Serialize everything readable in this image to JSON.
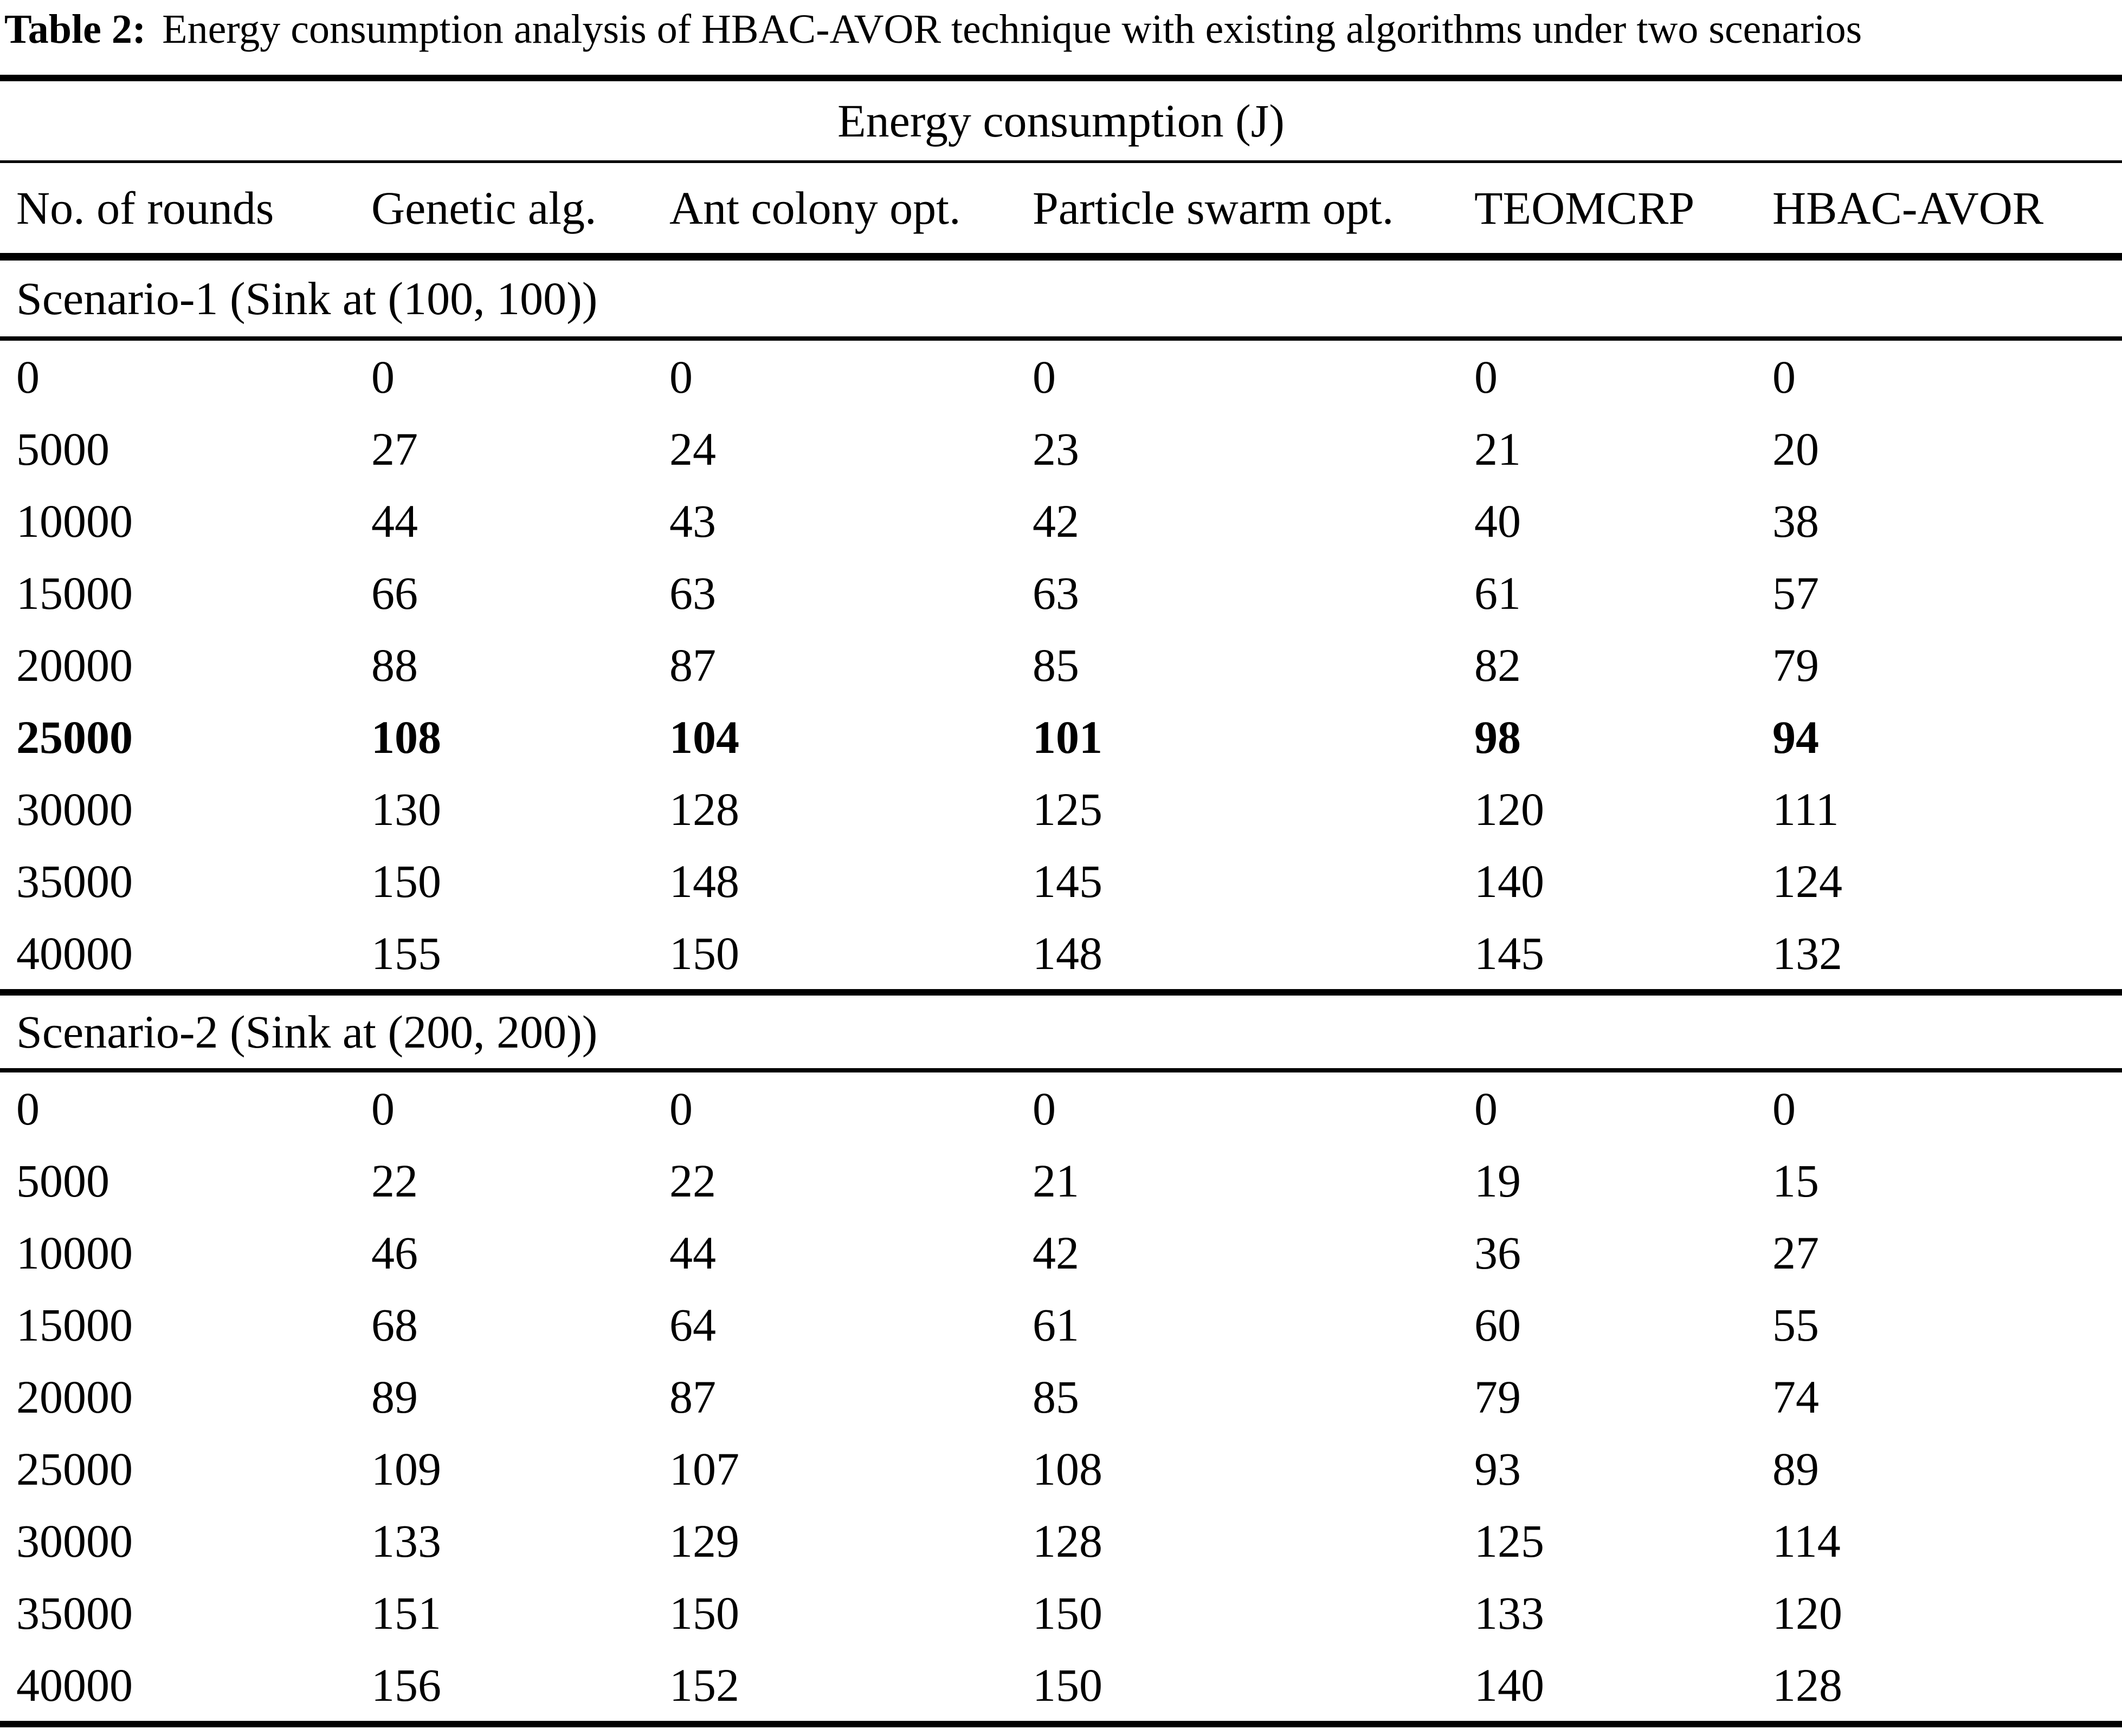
{
  "caption": {
    "label": "Table 2:",
    "text": "Energy consumption analysis of HBAC-AVOR technique with existing algorithms under two scenarios"
  },
  "table": {
    "span_header": "Energy consumption (J)",
    "columns": [
      "No. of rounds",
      "Genetic alg.",
      "Ant colony opt.",
      "Particle swarm opt.",
      "TEOMCRP",
      "HBAC-AVOR"
    ],
    "sections": [
      {
        "label": "Scenario-1 (Sink at (100, 100))",
        "rows": [
          {
            "values": [
              "0",
              "0",
              "0",
              "0",
              "0",
              "0"
            ],
            "bold": false
          },
          {
            "values": [
              "5000",
              "27",
              "24",
              "23",
              "21",
              "20"
            ],
            "bold": false
          },
          {
            "values": [
              "10000",
              "44",
              "43",
              "42",
              "40",
              "38"
            ],
            "bold": false
          },
          {
            "values": [
              "15000",
              "66",
              "63",
              "63",
              "61",
              "57"
            ],
            "bold": false
          },
          {
            "values": [
              "20000",
              "88",
              "87",
              "85",
              "82",
              "79"
            ],
            "bold": false
          },
          {
            "values": [
              "25000",
              "108",
              "104",
              "101",
              "98",
              "94"
            ],
            "bold": true
          },
          {
            "values": [
              "30000",
              "130",
              "128",
              "125",
              "120",
              "111"
            ],
            "bold": false
          },
          {
            "values": [
              "35000",
              "150",
              "148",
              "145",
              "140",
              "124"
            ],
            "bold": false
          },
          {
            "values": [
              "40000",
              "155",
              "150",
              "148",
              "145",
              "132"
            ],
            "bold": false
          }
        ]
      },
      {
        "label": "Scenario-2 (Sink at (200, 200))",
        "rows": [
          {
            "values": [
              "0",
              "0",
              "0",
              "0",
              "0",
              "0"
            ],
            "bold": false
          },
          {
            "values": [
              "5000",
              "22",
              "22",
              "21",
              "19",
              "15"
            ],
            "bold": false
          },
          {
            "values": [
              "10000",
              "46",
              "44",
              "42",
              "36",
              "27"
            ],
            "bold": false
          },
          {
            "values": [
              "15000",
              "68",
              "64",
              "61",
              "60",
              "55"
            ],
            "bold": false
          },
          {
            "values": [
              "20000",
              "89",
              "87",
              "85",
              "79",
              "74"
            ],
            "bold": false
          },
          {
            "values": [
              "25000",
              "109",
              "107",
              "108",
              "93",
              "89"
            ],
            "bold": false
          },
          {
            "values": [
              "30000",
              "133",
              "129",
              "128",
              "125",
              "114"
            ],
            "bold": false
          },
          {
            "values": [
              "35000",
              "151",
              "150",
              "150",
              "133",
              "120"
            ],
            "bold": false
          },
          {
            "values": [
              "40000",
              "156",
              "152",
              "150",
              "140",
              "128"
            ],
            "bold": false
          }
        ]
      }
    ]
  }
}
